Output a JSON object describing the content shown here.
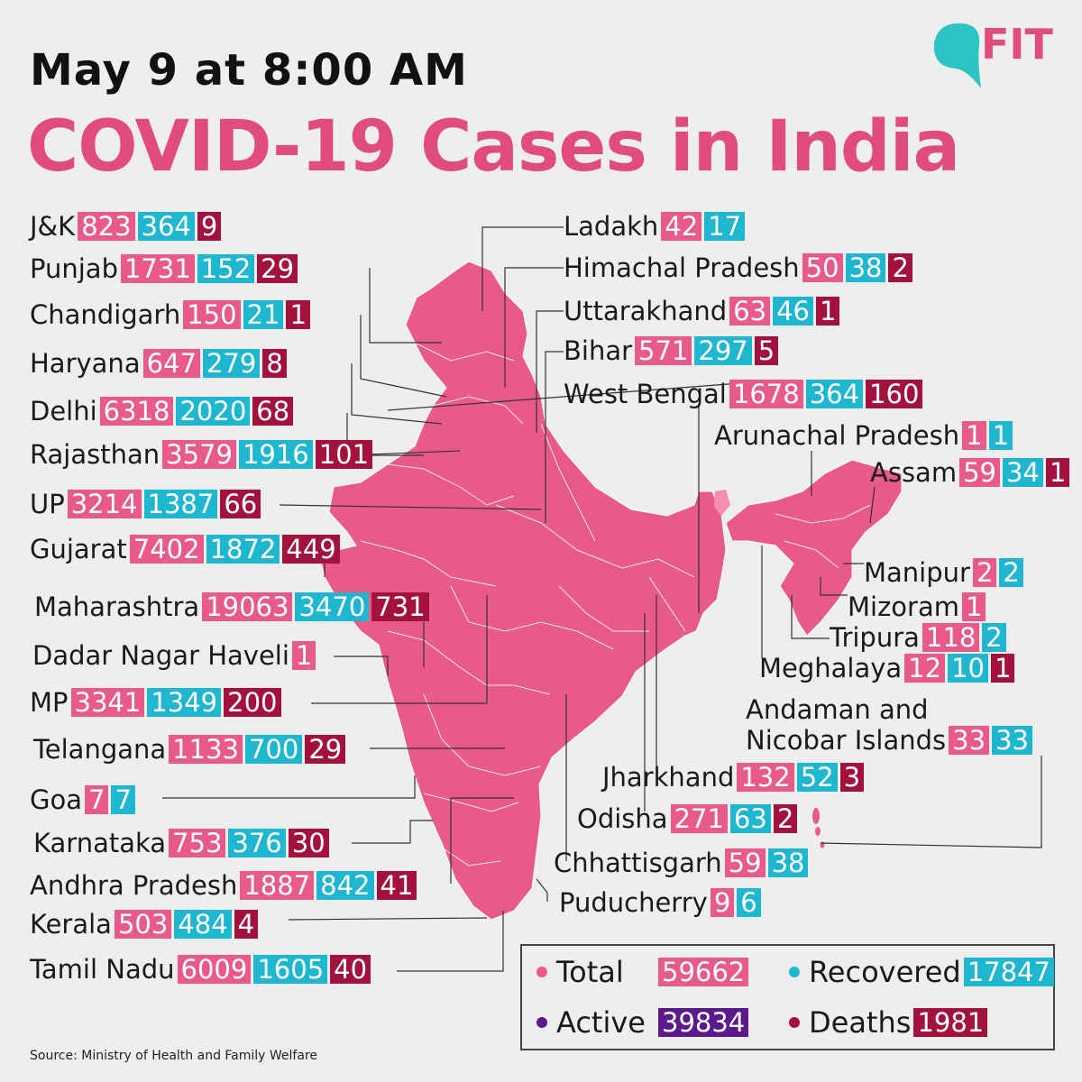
{
  "header": {
    "date": "May 9 at 8:00 AM",
    "title": "COVID-19 Cases in India",
    "logo_text": "FIT"
  },
  "colors": {
    "total": "#e75a8a",
    "recovered": "#1fb6cf",
    "deaths": "#a3123f",
    "active": "#5b1a8c",
    "map": "#e75a8a",
    "title": "#e04d7c"
  },
  "states": [
    {
      "name": "J&K",
      "total": "823",
      "recovered": "364",
      "deaths": "9"
    },
    {
      "name": "Punjab",
      "total": "1731",
      "recovered": "152",
      "deaths": "29"
    },
    {
      "name": "Chandigarh",
      "total": "150",
      "recovered": "21",
      "deaths": "1"
    },
    {
      "name": "Haryana",
      "total": "647",
      "recovered": "279",
      "deaths": "8"
    },
    {
      "name": "Delhi",
      "total": "6318",
      "recovered": "2020",
      "deaths": "68"
    },
    {
      "name": "Rajasthan",
      "total": "3579",
      "recovered": "1916",
      "deaths": "101"
    },
    {
      "name": "UP",
      "total": "3214",
      "recovered": "1387",
      "deaths": "66"
    },
    {
      "name": "Gujarat",
      "total": "7402",
      "recovered": "1872",
      "deaths": "449"
    },
    {
      "name": "Maharashtra",
      "total": "19063",
      "recovered": "3470",
      "deaths": "731"
    },
    {
      "name": "Dadar Nagar Haveli",
      "total": "1"
    },
    {
      "name": "MP",
      "total": "3341",
      "recovered": "1349",
      "deaths": "200"
    },
    {
      "name": "Telangana",
      "total": "1133",
      "recovered": "700",
      "deaths": "29"
    },
    {
      "name": "Goa",
      "total": "7",
      "recovered": "7"
    },
    {
      "name": "Karnataka",
      "total": "753",
      "recovered": "376",
      "deaths": "30"
    },
    {
      "name": "Andhra Pradesh",
      "total": "1887",
      "recovered": "842",
      "deaths": "41"
    },
    {
      "name": "Kerala",
      "total": "503",
      "recovered": "484",
      "deaths": "4"
    },
    {
      "name": "Tamil Nadu",
      "total": "6009",
      "recovered": "1605",
      "deaths": "40"
    },
    {
      "name": "Ladakh",
      "total": "42",
      "recovered": "17"
    },
    {
      "name": "Himachal Pradesh",
      "total": "50",
      "recovered": "38",
      "deaths": "2"
    },
    {
      "name": "Uttarakhand",
      "total": "63",
      "recovered": "46",
      "deaths": "1"
    },
    {
      "name": "Bihar",
      "total": "571",
      "recovered": "297",
      "deaths": "5"
    },
    {
      "name": "West Bengal",
      "total": "1678",
      "recovered": "364",
      "deaths": "160"
    },
    {
      "name": "Arunachal Pradesh",
      "total": "1",
      "recovered": "1"
    },
    {
      "name": "Assam",
      "total": "59",
      "recovered": "34",
      "deaths": "1"
    },
    {
      "name": "Manipur",
      "total": "2",
      "recovered": "2"
    },
    {
      "name": "Mizoram",
      "total": "1"
    },
    {
      "name": "Tripura",
      "total": "118",
      "recovered": "2"
    },
    {
      "name": "Meghalaya",
      "total": "12",
      "recovered": "10",
      "deaths": "1"
    },
    {
      "name": "Andaman and",
      "name2": "Nicobar Islands",
      "total": "33",
      "recovered": "33"
    },
    {
      "name": "Jharkhand",
      "total": "132",
      "recovered": "52",
      "deaths": "3"
    },
    {
      "name": "Odisha",
      "total": "271",
      "recovered": "63",
      "deaths": "2"
    },
    {
      "name": "Chhattisgarh",
      "total": "59",
      "recovered": "38"
    },
    {
      "name": "Puducherry",
      "total": "9",
      "recovered": "6"
    }
  ],
  "legend": {
    "total_label": "Total",
    "total_value": "59662",
    "recovered_label": "Recovered",
    "recovered_value": "17847",
    "active_label": "Active",
    "active_value": "39834",
    "deaths_label": "Deaths",
    "deaths_value": "1981"
  },
  "source": "Source: Ministry of Health and Family Welfare"
}
